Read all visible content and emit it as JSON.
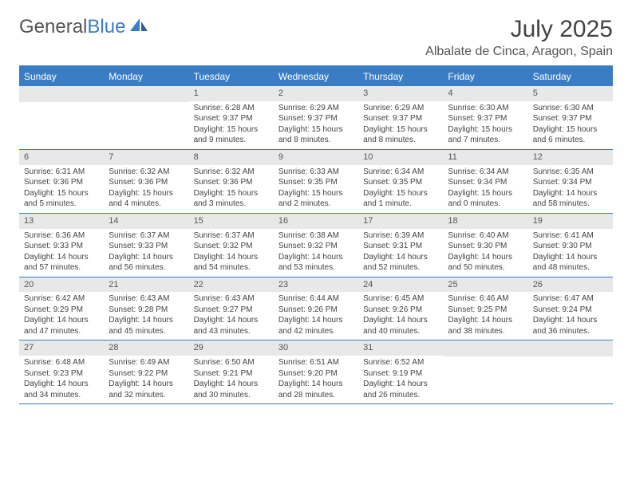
{
  "brand": {
    "part1": "General",
    "part2": "Blue"
  },
  "title": "July 2025",
  "location": "Albalate de Cinca, Aragon, Spain",
  "colors": {
    "accent": "#3b7dc4",
    "header_bg": "#3b7dc4",
    "daynum_bg": "#e8e8e8",
    "text": "#444444"
  },
  "day_names": [
    "Sunday",
    "Monday",
    "Tuesday",
    "Wednesday",
    "Thursday",
    "Friday",
    "Saturday"
  ],
  "weeks": [
    [
      {
        "n": "",
        "sr": "",
        "ss": "",
        "dl": ""
      },
      {
        "n": "",
        "sr": "",
        "ss": "",
        "dl": ""
      },
      {
        "n": "1",
        "sr": "Sunrise: 6:28 AM",
        "ss": "Sunset: 9:37 PM",
        "dl": "Daylight: 15 hours and 9 minutes."
      },
      {
        "n": "2",
        "sr": "Sunrise: 6:29 AM",
        "ss": "Sunset: 9:37 PM",
        "dl": "Daylight: 15 hours and 8 minutes."
      },
      {
        "n": "3",
        "sr": "Sunrise: 6:29 AM",
        "ss": "Sunset: 9:37 PM",
        "dl": "Daylight: 15 hours and 8 minutes."
      },
      {
        "n": "4",
        "sr": "Sunrise: 6:30 AM",
        "ss": "Sunset: 9:37 PM",
        "dl": "Daylight: 15 hours and 7 minutes."
      },
      {
        "n": "5",
        "sr": "Sunrise: 6:30 AM",
        "ss": "Sunset: 9:37 PM",
        "dl": "Daylight: 15 hours and 6 minutes."
      }
    ],
    [
      {
        "n": "6",
        "sr": "Sunrise: 6:31 AM",
        "ss": "Sunset: 9:36 PM",
        "dl": "Daylight: 15 hours and 5 minutes."
      },
      {
        "n": "7",
        "sr": "Sunrise: 6:32 AM",
        "ss": "Sunset: 9:36 PM",
        "dl": "Daylight: 15 hours and 4 minutes."
      },
      {
        "n": "8",
        "sr": "Sunrise: 6:32 AM",
        "ss": "Sunset: 9:36 PM",
        "dl": "Daylight: 15 hours and 3 minutes."
      },
      {
        "n": "9",
        "sr": "Sunrise: 6:33 AM",
        "ss": "Sunset: 9:35 PM",
        "dl": "Daylight: 15 hours and 2 minutes."
      },
      {
        "n": "10",
        "sr": "Sunrise: 6:34 AM",
        "ss": "Sunset: 9:35 PM",
        "dl": "Daylight: 15 hours and 1 minute."
      },
      {
        "n": "11",
        "sr": "Sunrise: 6:34 AM",
        "ss": "Sunset: 9:34 PM",
        "dl": "Daylight: 15 hours and 0 minutes."
      },
      {
        "n": "12",
        "sr": "Sunrise: 6:35 AM",
        "ss": "Sunset: 9:34 PM",
        "dl": "Daylight: 14 hours and 58 minutes."
      }
    ],
    [
      {
        "n": "13",
        "sr": "Sunrise: 6:36 AM",
        "ss": "Sunset: 9:33 PM",
        "dl": "Daylight: 14 hours and 57 minutes."
      },
      {
        "n": "14",
        "sr": "Sunrise: 6:37 AM",
        "ss": "Sunset: 9:33 PM",
        "dl": "Daylight: 14 hours and 56 minutes."
      },
      {
        "n": "15",
        "sr": "Sunrise: 6:37 AM",
        "ss": "Sunset: 9:32 PM",
        "dl": "Daylight: 14 hours and 54 minutes."
      },
      {
        "n": "16",
        "sr": "Sunrise: 6:38 AM",
        "ss": "Sunset: 9:32 PM",
        "dl": "Daylight: 14 hours and 53 minutes."
      },
      {
        "n": "17",
        "sr": "Sunrise: 6:39 AM",
        "ss": "Sunset: 9:31 PM",
        "dl": "Daylight: 14 hours and 52 minutes."
      },
      {
        "n": "18",
        "sr": "Sunrise: 6:40 AM",
        "ss": "Sunset: 9:30 PM",
        "dl": "Daylight: 14 hours and 50 minutes."
      },
      {
        "n": "19",
        "sr": "Sunrise: 6:41 AM",
        "ss": "Sunset: 9:30 PM",
        "dl": "Daylight: 14 hours and 48 minutes."
      }
    ],
    [
      {
        "n": "20",
        "sr": "Sunrise: 6:42 AM",
        "ss": "Sunset: 9:29 PM",
        "dl": "Daylight: 14 hours and 47 minutes."
      },
      {
        "n": "21",
        "sr": "Sunrise: 6:43 AM",
        "ss": "Sunset: 9:28 PM",
        "dl": "Daylight: 14 hours and 45 minutes."
      },
      {
        "n": "22",
        "sr": "Sunrise: 6:43 AM",
        "ss": "Sunset: 9:27 PM",
        "dl": "Daylight: 14 hours and 43 minutes."
      },
      {
        "n": "23",
        "sr": "Sunrise: 6:44 AM",
        "ss": "Sunset: 9:26 PM",
        "dl": "Daylight: 14 hours and 42 minutes."
      },
      {
        "n": "24",
        "sr": "Sunrise: 6:45 AM",
        "ss": "Sunset: 9:26 PM",
        "dl": "Daylight: 14 hours and 40 minutes."
      },
      {
        "n": "25",
        "sr": "Sunrise: 6:46 AM",
        "ss": "Sunset: 9:25 PM",
        "dl": "Daylight: 14 hours and 38 minutes."
      },
      {
        "n": "26",
        "sr": "Sunrise: 6:47 AM",
        "ss": "Sunset: 9:24 PM",
        "dl": "Daylight: 14 hours and 36 minutes."
      }
    ],
    [
      {
        "n": "27",
        "sr": "Sunrise: 6:48 AM",
        "ss": "Sunset: 9:23 PM",
        "dl": "Daylight: 14 hours and 34 minutes."
      },
      {
        "n": "28",
        "sr": "Sunrise: 6:49 AM",
        "ss": "Sunset: 9:22 PM",
        "dl": "Daylight: 14 hours and 32 minutes."
      },
      {
        "n": "29",
        "sr": "Sunrise: 6:50 AM",
        "ss": "Sunset: 9:21 PM",
        "dl": "Daylight: 14 hours and 30 minutes."
      },
      {
        "n": "30",
        "sr": "Sunrise: 6:51 AM",
        "ss": "Sunset: 9:20 PM",
        "dl": "Daylight: 14 hours and 28 minutes."
      },
      {
        "n": "31",
        "sr": "Sunrise: 6:52 AM",
        "ss": "Sunset: 9:19 PM",
        "dl": "Daylight: 14 hours and 26 minutes."
      },
      {
        "n": "",
        "sr": "",
        "ss": "",
        "dl": ""
      },
      {
        "n": "",
        "sr": "",
        "ss": "",
        "dl": ""
      }
    ]
  ]
}
